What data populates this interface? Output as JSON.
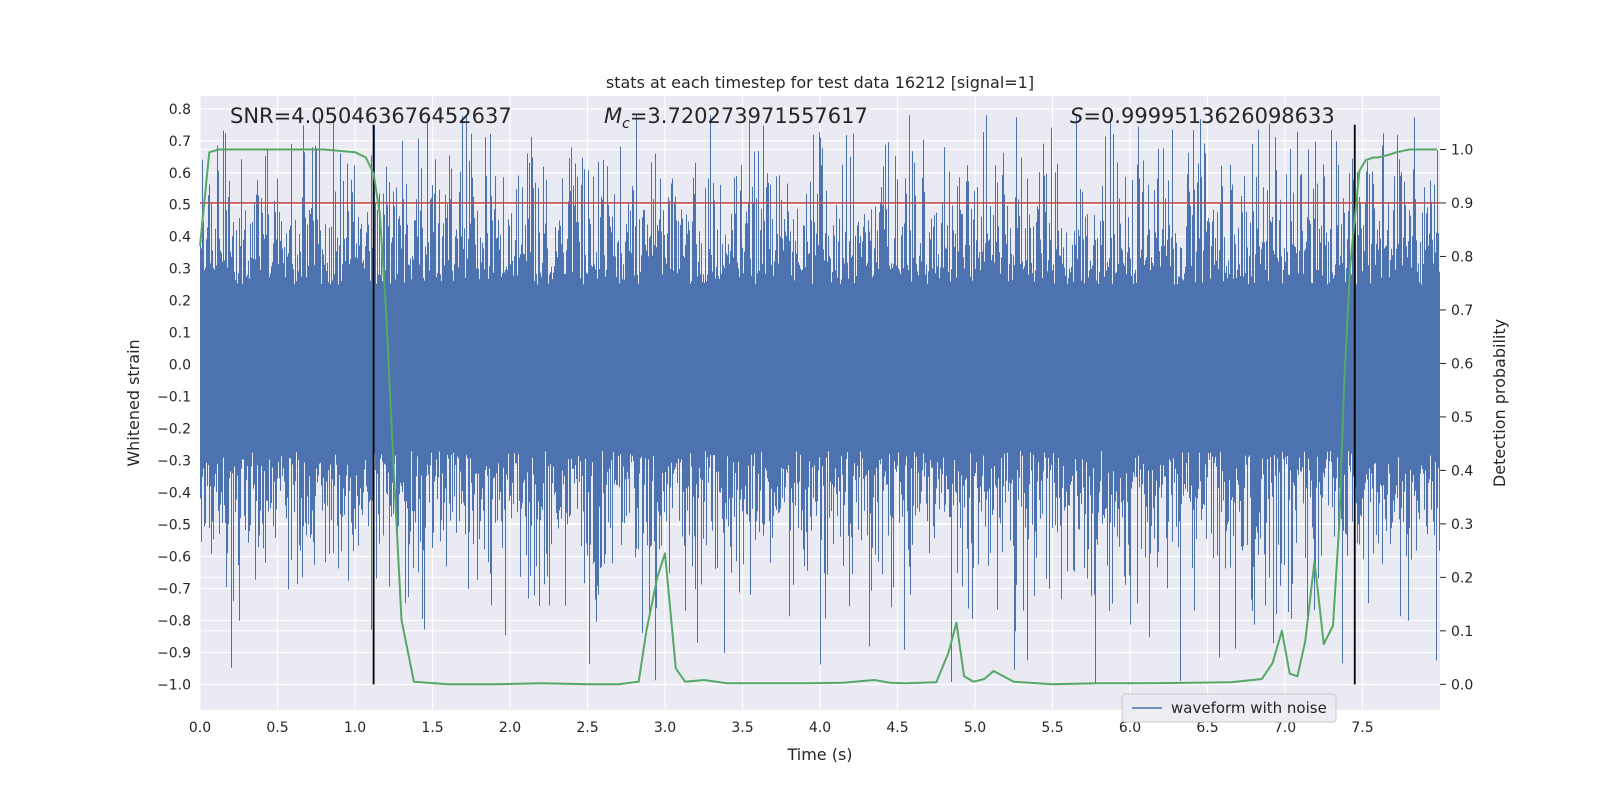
{
  "chart_data": {
    "type": "line",
    "title": "stats at each timestep for test data 16212 [signal=1]",
    "xlabel": "Time (s)",
    "ylabel_left": "Whitened strain",
    "ylabel_right": "Detection probability",
    "xlim": [
      0.0,
      8.0
    ],
    "ylim_left": [
      -1.08,
      0.84
    ],
    "ylim_right": [
      -0.048,
      1.1
    ],
    "xticks": [
      "0.0",
      "0.5",
      "1.0",
      "1.5",
      "2.0",
      "2.5",
      "3.0",
      "3.5",
      "4.0",
      "4.5",
      "5.0",
      "5.5",
      "6.0",
      "6.5",
      "7.0",
      "7.5"
    ],
    "xtick_values": [
      0.0,
      0.5,
      1.0,
      1.5,
      2.0,
      2.5,
      3.0,
      3.5,
      4.0,
      4.5,
      5.0,
      5.5,
      6.0,
      6.5,
      7.0,
      7.5
    ],
    "yticks_left": [
      "0.8",
      "0.7",
      "0.6",
      "0.5",
      "0.4",
      "0.3",
      "0.2",
      "0.1",
      "0.0",
      "−0.1",
      "−0.2",
      "−0.3",
      "−0.4",
      "−0.5",
      "−0.6",
      "−0.7",
      "−0.8",
      "−0.9",
      "−1.0"
    ],
    "ytick_values_left": [
      0.8,
      0.7,
      0.6,
      0.5,
      0.4,
      0.3,
      0.2,
      0.1,
      0.0,
      -0.1,
      -0.2,
      -0.3,
      -0.4,
      -0.5,
      -0.6,
      -0.7,
      -0.8,
      -0.9,
      -1.0
    ],
    "yticks_right": [
      "1.0",
      "0.9",
      "0.8",
      "0.7",
      "0.6",
      "0.5",
      "0.4",
      "0.3",
      "0.2",
      "0.1",
      "0.0"
    ],
    "ytick_values_right": [
      1.0,
      0.9,
      0.8,
      0.7,
      0.6,
      0.5,
      0.4,
      0.3,
      0.2,
      0.1,
      0.0
    ],
    "annotations": {
      "snr": "SNR=4.050463676452637",
      "mc_symbol": "M",
      "mc_sub": "c",
      "mc_value": "=3.720273971557617",
      "s_symbol": "S",
      "s_value": "=0.9999513626098633"
    },
    "legend": {
      "label": "waveform with noise",
      "placement": "lower right"
    },
    "waveform": {
      "name": "waveform with noise",
      "color": "#4c72b0",
      "core_upper": 0.25,
      "core_lower": -0.27,
      "noise_sigma": 0.2,
      "note": "dense noisy strain time series filling roughly -1.0 to 0.78"
    },
    "threshold": {
      "value": 0.9,
      "color": "#c44e52",
      "axis": "right"
    },
    "vlines": {
      "times": [
        1.12,
        7.45
      ],
      "color": "#000000",
      "ymin": -1.0,
      "ymax": 0.75
    },
    "probability_series": {
      "name": "detection probability",
      "color": "#55a868",
      "x": [
        0.0,
        0.06,
        0.12,
        0.2,
        0.4,
        0.6,
        0.8,
        1.0,
        1.07,
        1.12,
        1.16,
        1.2,
        1.25,
        1.3,
        1.38,
        1.6,
        1.9,
        2.2,
        2.5,
        2.7,
        2.83,
        2.88,
        2.95,
        3.0,
        3.07,
        3.13,
        3.25,
        3.4,
        3.6,
        3.9,
        4.15,
        4.35,
        4.45,
        4.55,
        4.75,
        4.83,
        4.88,
        4.93,
        4.99,
        5.06,
        5.12,
        5.25,
        5.5,
        5.8,
        6.1,
        6.4,
        6.65,
        6.85,
        6.92,
        6.98,
        7.03,
        7.08,
        7.13,
        7.19,
        7.25,
        7.31,
        7.35,
        7.38,
        7.42,
        7.48,
        7.52,
        7.57,
        7.6,
        7.67,
        7.72,
        7.8,
        7.85,
        7.98
      ],
      "y": [
        0.82,
        0.995,
        1.0,
        1.0,
        1.0,
        1.0,
        1.0,
        0.995,
        0.985,
        0.955,
        0.88,
        0.7,
        0.4,
        0.12,
        0.005,
        0.0,
        0.0,
        0.002,
        0.0,
        0.0,
        0.005,
        0.1,
        0.2,
        0.245,
        0.03,
        0.005,
        0.008,
        0.002,
        0.002,
        0.002,
        0.003,
        0.008,
        0.003,
        0.002,
        0.004,
        0.06,
        0.115,
        0.015,
        0.005,
        0.01,
        0.025,
        0.005,
        0.0,
        0.002,
        0.002,
        0.003,
        0.004,
        0.01,
        0.04,
        0.1,
        0.02,
        0.015,
        0.08,
        0.23,
        0.075,
        0.11,
        0.3,
        0.55,
        0.78,
        0.96,
        0.98,
        0.985,
        0.985,
        0.99,
        0.995,
        1.0,
        1.0,
        1.0
      ]
    }
  }
}
